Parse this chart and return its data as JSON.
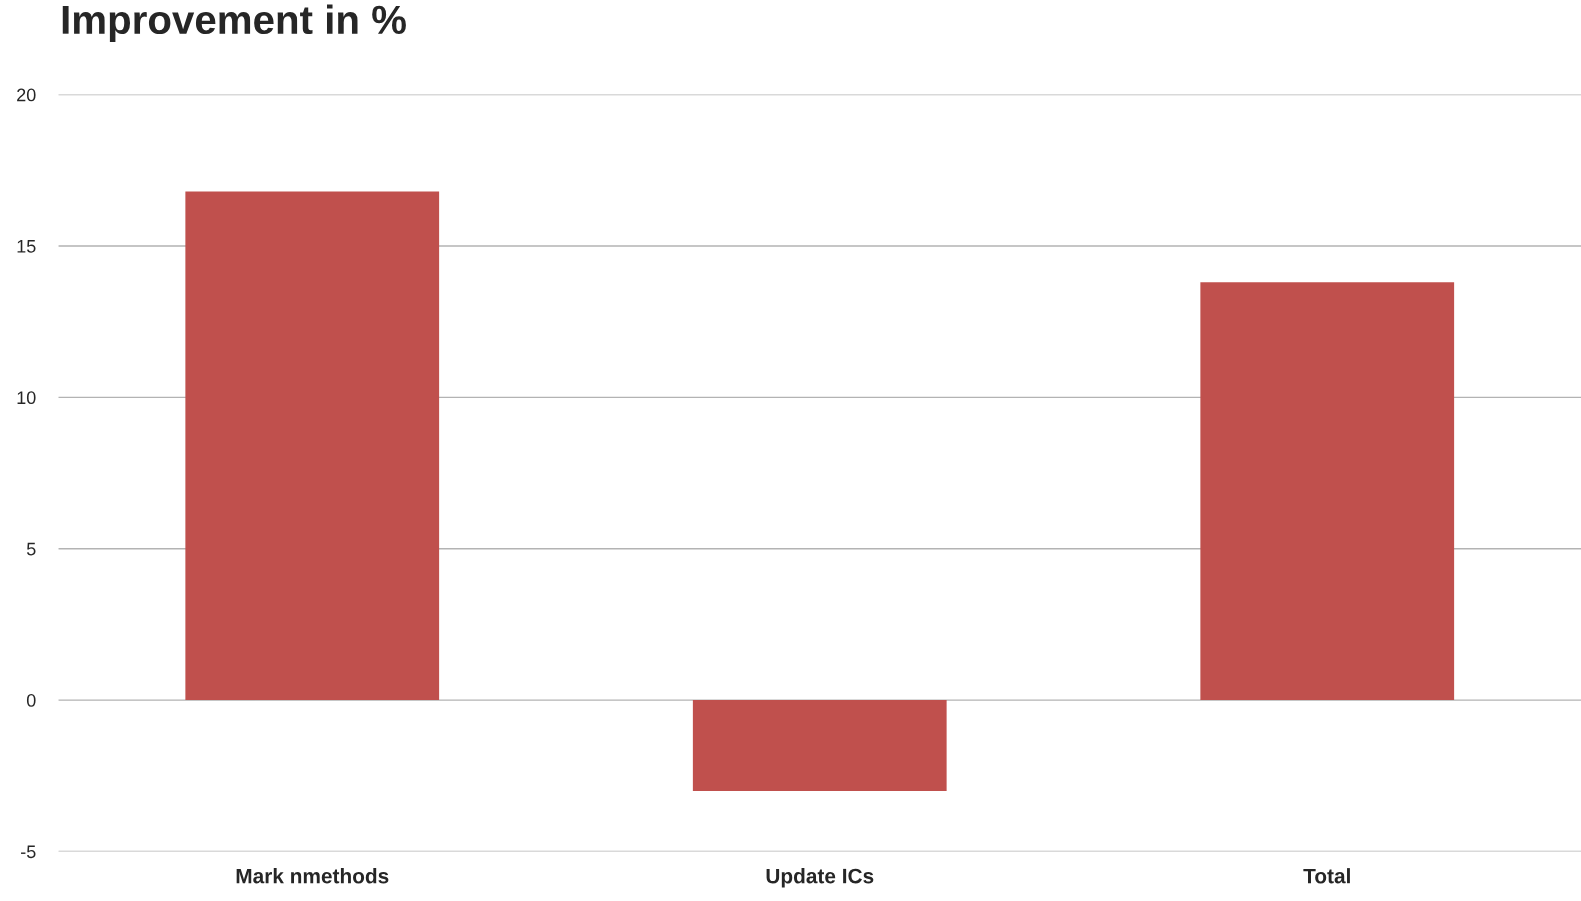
{
  "chart_data": {
    "type": "bar",
    "title": "Improvement in %",
    "categories": [
      "Mark nmethods",
      "Update ICs",
      "Total"
    ],
    "values": [
      16.8,
      -3.0,
      13.8
    ],
    "color": "#c0504d",
    "ylim": [
      -5,
      20
    ],
    "yticks": [
      -5,
      0,
      5,
      10,
      15,
      20
    ],
    "grid": "y"
  }
}
